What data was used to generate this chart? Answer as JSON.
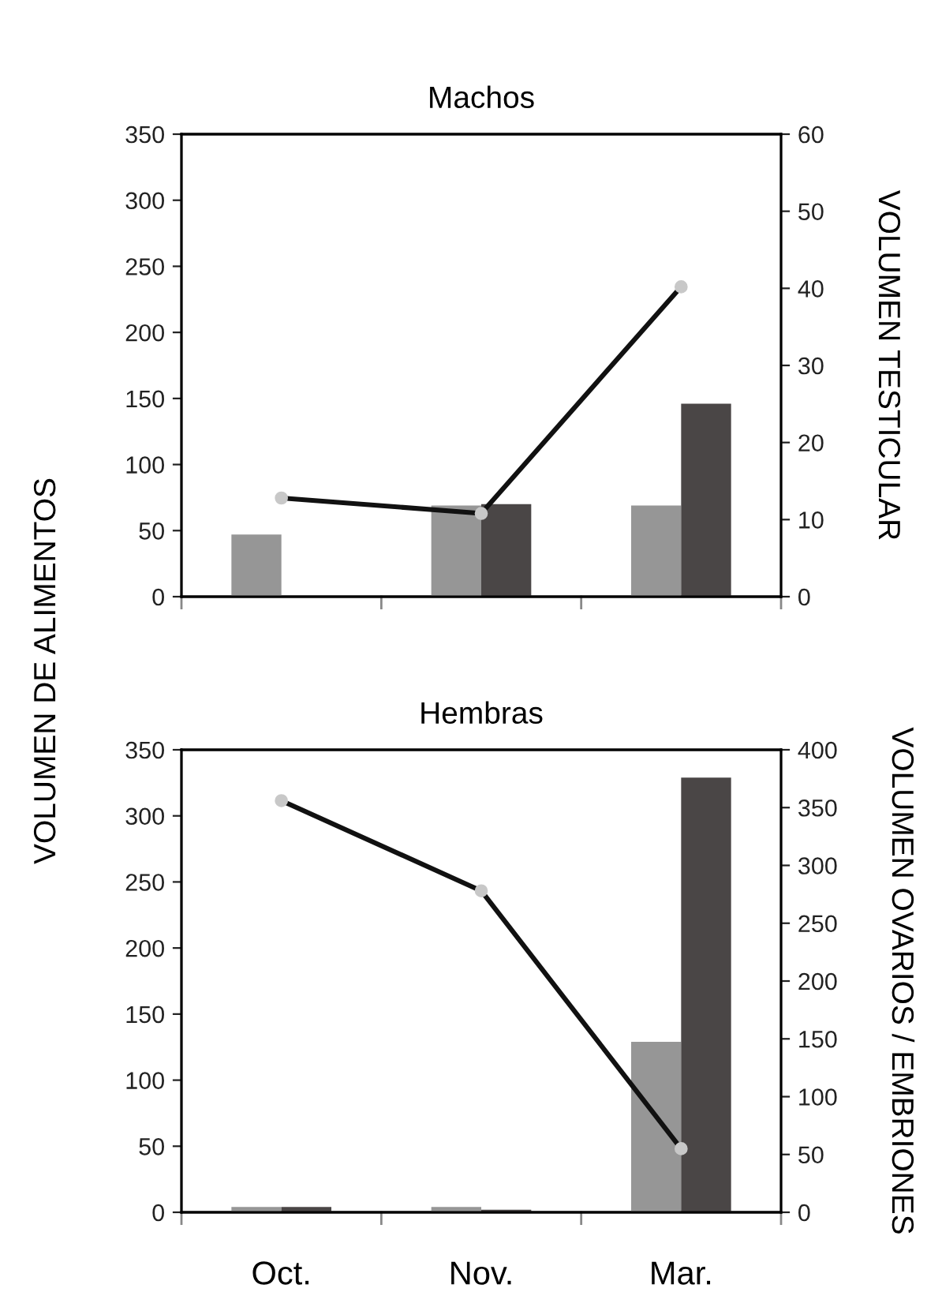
{
  "chart_data": [
    {
      "type": "bar",
      "title": "Machos",
      "ylabel": "VOLUMEN DE ALIMENTOS",
      "y2label": "VOLUMEN TESTICULAR",
      "categories": [
        null,
        null,
        null
      ],
      "series": [
        {
          "color": "#969696",
          "values": [
            47,
            69,
            69
          ]
        },
        {
          "color": "#4a4646",
          "values": [
            null,
            70,
            146
          ]
        },
        {
          "type": "line",
          "axis": "y2",
          "color": "#111111",
          "marker": "circle",
          "values": [
            12.8,
            10.8,
            40.2
          ]
        }
      ],
      "ylim": [
        0,
        350
      ],
      "yticks": [
        0,
        50,
        100,
        150,
        200,
        250,
        300,
        350
      ],
      "y2lim": [
        0,
        60
      ],
      "y2ticks": [
        0,
        10,
        20,
        30,
        40,
        50,
        60
      ],
      "grid": false
    },
    {
      "type": "bar",
      "title": "Hembras",
      "y2label": "VOLUMEN OVARIOS / EMBRIONES",
      "categories": [
        "Oct.",
        "Nov.",
        "Mar."
      ],
      "series": [
        {
          "color": "#969696",
          "values": [
            4,
            4,
            129
          ]
        },
        {
          "color": "#4a4646",
          "values": [
            4,
            2,
            329
          ]
        },
        {
          "type": "line",
          "axis": "y2",
          "color": "#111111",
          "marker": "circle",
          "values": [
            356,
            278,
            55
          ]
        }
      ],
      "ylim": [
        0,
        350
      ],
      "yticks": [
        0,
        50,
        100,
        150,
        200,
        250,
        300,
        350
      ],
      "y2lim": [
        0,
        400
      ],
      "y2ticks": [
        0,
        50,
        100,
        150,
        200,
        250,
        300,
        350,
        400
      ],
      "grid": false
    }
  ]
}
